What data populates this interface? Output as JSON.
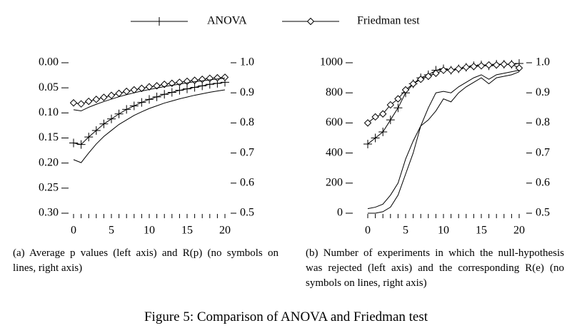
{
  "legend": [
    {
      "name": "ANOVA",
      "marker": "plus"
    },
    {
      "name": "Friedman test",
      "marker": "diamond"
    }
  ],
  "chart_data": [
    {
      "type": "line",
      "caption": "(a) Average p values (left axis) and R(p) (no symbols on lines, right axis)",
      "x": [
        0,
        1,
        2,
        3,
        4,
        5,
        6,
        7,
        8,
        9,
        10,
        11,
        12,
        13,
        14,
        15,
        16,
        17,
        18,
        19,
        20
      ],
      "xlim": [
        0,
        20
      ],
      "xticks": [
        0,
        5,
        10,
        15,
        20
      ],
      "ylim": [
        0.3,
        0
      ],
      "yticks": [
        {
          "value": 0,
          "label": "0.00"
        },
        0.05,
        {
          "value": 0.1,
          "label": "0.10"
        },
        0.15,
        {
          "value": 0.2,
          "label": "0.20"
        },
        0.25,
        {
          "value": 0.3,
          "label": "0.30"
        }
      ],
      "y2lim": [
        0.5,
        1
      ],
      "y2ticks": [
        0.5,
        0.6,
        0.7,
        0.8,
        0.9,
        {
          "value": 1,
          "label": "1.0"
        }
      ],
      "series": [
        {
          "color": "#000000",
          "marker": "plus",
          "values": [
            0.16,
            0.163,
            0.148,
            0.135,
            0.122,
            0.112,
            0.102,
            0.093,
            0.086,
            0.079,
            0.073,
            0.068,
            0.063,
            0.059,
            0.055,
            0.052,
            0.049,
            0.046,
            0.043,
            0.041,
            0.039
          ]
        },
        {
          "color": "#000000",
          "marker": "diamond",
          "values": [
            0.08,
            0.082,
            0.077,
            0.073,
            0.069,
            0.065,
            0.061,
            0.057,
            0.054,
            0.051,
            0.048,
            0.046,
            0.043,
            0.041,
            0.039,
            0.037,
            0.035,
            0.033,
            0.031,
            0.03,
            0.029
          ]
        },
        {
          "color": "#000000",
          "marker": "none",
          "axis": "y2",
          "values": [
            0.678,
            0.668,
            0.7,
            0.73,
            0.755,
            0.775,
            0.795,
            0.81,
            0.825,
            0.837,
            0.848,
            0.857,
            0.866,
            0.873,
            0.88,
            0.886,
            0.892,
            0.897,
            0.902,
            0.906,
            0.91
          ]
        },
        {
          "color": "#000000",
          "marker": "none",
          "axis": "y2",
          "values": [
            0.844,
            0.84,
            0.852,
            0.862,
            0.871,
            0.879,
            0.887,
            0.894,
            0.9,
            0.906,
            0.911,
            0.916,
            0.921,
            0.925,
            0.929,
            0.933,
            0.937,
            0.94,
            0.943,
            0.946,
            0.949
          ]
        }
      ]
    },
    {
      "type": "line",
      "caption": "(b) Number of experiments in which the null-hypothesis was rejected (left axis) and the corresponding R(e) (no symbols on lines, right axis)",
      "x": [
        0,
        1,
        2,
        3,
        4,
        5,
        6,
        7,
        8,
        9,
        10,
        11,
        12,
        13,
        14,
        15,
        16,
        17,
        18,
        19,
        20
      ],
      "xlim": [
        0,
        20
      ],
      "xticks": [
        0,
        5,
        10,
        15,
        20
      ],
      "ylim": [
        0,
        1000
      ],
      "yticks": [
        0,
        200,
        400,
        600,
        800,
        1000
      ],
      "y2lim": [
        0.5,
        1
      ],
      "y2ticks": [
        0.5,
        0.6,
        0.7,
        0.8,
        0.9,
        {
          "value": 1,
          "label": "1.0"
        }
      ],
      "series": [
        {
          "color": "#000000",
          "marker": "plus",
          "values": [
            460,
            500,
            540,
            620,
            700,
            800,
            860,
            900,
            920,
            950,
            960,
            950,
            960,
            970,
            980,
            985,
            980,
            990,
            990,
            990,
            995
          ]
        },
        {
          "color": "#000000",
          "marker": "diamond",
          "values": [
            600,
            640,
            660,
            720,
            760,
            820,
            860,
            890,
            910,
            930,
            950,
            950,
            960,
            970,
            975,
            980,
            985,
            985,
            990,
            990,
            965
          ]
        },
        {
          "color": "#000000",
          "marker": "none",
          "axis": "y2",
          "values": [
            0.515,
            0.52,
            0.53,
            0.56,
            0.6,
            0.68,
            0.74,
            0.79,
            0.85,
            0.9,
            0.905,
            0.9,
            0.92,
            0.935,
            0.95,
            0.96,
            0.945,
            0.96,
            0.965,
            0.97,
            0.975
          ]
        },
        {
          "color": "#000000",
          "marker": "none",
          "axis": "y2",
          "values": [
            0.5,
            0.5,
            0.505,
            0.52,
            0.56,
            0.63,
            0.7,
            0.79,
            0.81,
            0.84,
            0.88,
            0.87,
            0.9,
            0.92,
            0.935,
            0.95,
            0.93,
            0.95,
            0.955,
            0.96,
            0.97
          ]
        }
      ]
    }
  ],
  "figure_caption": "Figure 5: Comparison of ANOVA and Friedman test"
}
